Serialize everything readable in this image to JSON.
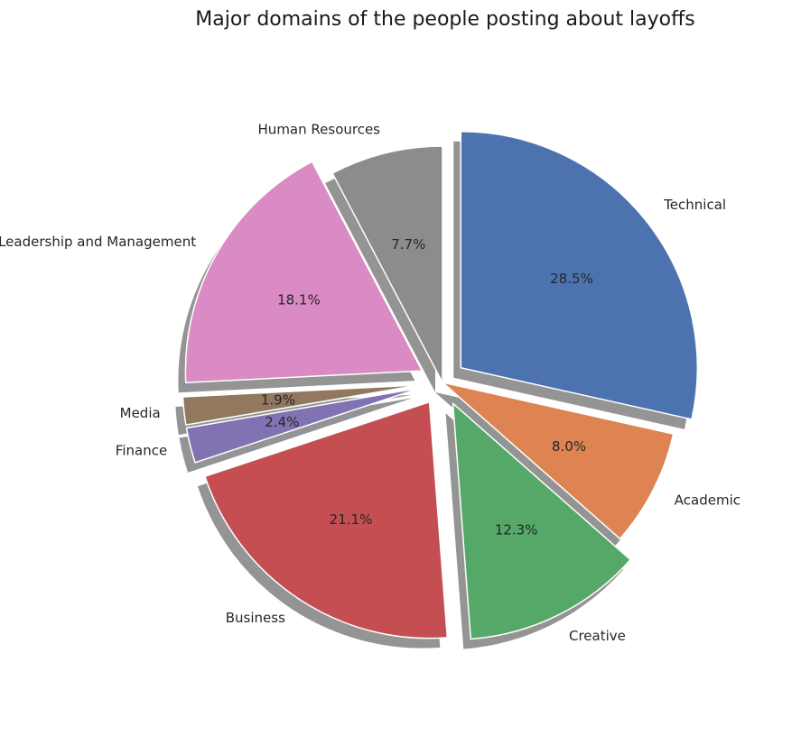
{
  "chart_data": {
    "type": "pie",
    "title": "Major domains of the people posting about layoffs",
    "shadow": true,
    "start_angle_deg": 90,
    "direction": "clockwise",
    "slices": [
      {
        "label": "Technical",
        "value": 28.5,
        "pct_label": "28.5%",
        "color": "#4c72b0",
        "exploded": true
      },
      {
        "label": "Academic",
        "value": 8.0,
        "pct_label": "8.0%",
        "color": "#dd8452",
        "exploded": false
      },
      {
        "label": "Creative",
        "value": 12.3,
        "pct_label": "12.3%",
        "color": "#55a868",
        "exploded": true
      },
      {
        "label": "Business",
        "value": 21.1,
        "pct_label": "21.1%",
        "color": "#c44e52",
        "exploded": true
      },
      {
        "label": "Finance",
        "value": 2.4,
        "pct_label": "2.4%",
        "color": "#8172b3",
        "exploded": true
      },
      {
        "label": "Media",
        "value": 1.9,
        "pct_label": "1.9%",
        "color": "#937860",
        "exploded": true
      },
      {
        "label": "Leadership and Management",
        "value": 18.1,
        "pct_label": "18.1%",
        "color": "#da8bc3",
        "exploded": true
      },
      {
        "label": "Human Resources",
        "value": 7.7,
        "pct_label": "7.7%",
        "color": "#8c8c8c",
        "exploded": false
      }
    ]
  }
}
